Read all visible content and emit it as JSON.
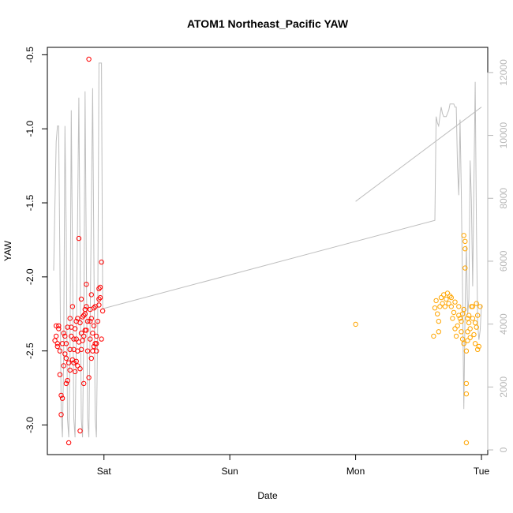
{
  "chart_data": {
    "type": "scatter",
    "title": "ATOM1 Northeast_Pacific YAW",
    "xlabel": "Date",
    "ylabel": "YAW",
    "x_ticks": [
      {
        "label": "Sat",
        "day": 1
      },
      {
        "label": "Sun",
        "day": 2
      },
      {
        "label": "Mon",
        "day": 3
      },
      {
        "label": "Tue",
        "day": 4
      }
    ],
    "xlim_days": [
      0.55,
      4.05
    ],
    "ylim": [
      -3.2,
      -0.45
    ],
    "y_ticks": [
      "-3.0",
      "-2.5",
      "-2.0",
      "-1.5",
      "-1.0",
      "-0.5"
    ],
    "y_tick_values": [
      -3.0,
      -2.5,
      -2.0,
      -1.5,
      -1.0,
      -0.5
    ],
    "y2lim": [
      -150,
      12800
    ],
    "y2_ticks": [
      "0",
      "2000",
      "4000",
      "6000",
      "8000",
      "10000",
      "12000"
    ],
    "y2_tick_values": [
      0,
      2000,
      4000,
      6000,
      8000,
      10000,
      12000
    ],
    "colors": {
      "series_red": "#ff0000",
      "series_orange": "#ffa500",
      "line_gray": "#bebebe"
    },
    "series": [
      {
        "color": "red",
        "points": [
          [
            0.61,
            -2.43
          ],
          [
            0.62,
            -2.33
          ],
          [
            0.62,
            -2.4
          ],
          [
            0.63,
            -2.45
          ],
          [
            0.64,
            -2.35
          ],
          [
            0.65,
            -2.5
          ],
          [
            0.65,
            -2.66
          ],
          [
            0.66,
            -2.8
          ],
          [
            0.66,
            -2.93
          ],
          [
            0.67,
            -2.82
          ],
          [
            0.67,
            -2.45
          ],
          [
            0.68,
            -2.38
          ],
          [
            0.68,
            -2.6
          ],
          [
            0.69,
            -2.4
          ],
          [
            0.7,
            -2.55
          ],
          [
            0.7,
            -2.45
          ],
          [
            0.71,
            -2.34
          ],
          [
            0.71,
            -2.7
          ],
          [
            0.72,
            -3.12
          ],
          [
            0.72,
            -2.58
          ],
          [
            0.73,
            -2.28
          ],
          [
            0.73,
            -2.49
          ],
          [
            0.74,
            -2.4
          ],
          [
            0.75,
            -2.2
          ],
          [
            0.75,
            -2.56
          ],
          [
            0.76,
            -2.49
          ],
          [
            0.76,
            -2.42
          ],
          [
            0.77,
            -2.64
          ],
          [
            0.77,
            -2.35
          ],
          [
            0.78,
            -2.3
          ],
          [
            0.78,
            -2.57
          ],
          [
            0.79,
            -2.5
          ],
          [
            0.79,
            -2.28
          ],
          [
            0.8,
            -2.44
          ],
          [
            0.8,
            -1.74
          ],
          [
            0.81,
            -2.62
          ],
          [
            0.81,
            -3.04
          ],
          [
            0.82,
            -2.38
          ],
          [
            0.82,
            -2.15
          ],
          [
            0.83,
            -2.27
          ],
          [
            0.83,
            -2.43
          ],
          [
            0.84,
            -2.72
          ],
          [
            0.84,
            -2.4
          ],
          [
            0.85,
            -2.25
          ],
          [
            0.85,
            -2.36
          ],
          [
            0.86,
            -2.2
          ],
          [
            0.86,
            -2.05
          ],
          [
            0.87,
            -2.3
          ],
          [
            0.87,
            -2.5
          ],
          [
            0.88,
            -0.53
          ],
          [
            0.88,
            -2.68
          ],
          [
            0.89,
            -2.22
          ],
          [
            0.89,
            -2.42
          ],
          [
            0.9,
            -2.12
          ],
          [
            0.9,
            -2.28
          ],
          [
            0.91,
            -2.38
          ],
          [
            0.91,
            -2.5
          ],
          [
            0.92,
            -2.21
          ],
          [
            0.92,
            -2.33
          ],
          [
            0.93,
            -2.45
          ],
          [
            0.93,
            -2.2
          ],
          [
            0.94,
            -2.5
          ],
          [
            0.94,
            -2.4
          ],
          [
            0.95,
            -2.3
          ],
          [
            0.96,
            -2.15
          ],
          [
            0.96,
            -2.08
          ],
          [
            0.97,
            -2.07
          ],
          [
            0.97,
            -2.14
          ],
          [
            0.98,
            -1.9
          ],
          [
            0.98,
            -2.42
          ],
          [
            0.99,
            -2.23
          ],
          [
            0.7,
            -2.72
          ],
          [
            0.74,
            -2.34
          ],
          [
            0.76,
            -2.58
          ],
          [
            0.79,
            -2.6
          ],
          [
            0.82,
            -2.49
          ],
          [
            0.84,
            -2.26
          ],
          [
            0.86,
            -2.36
          ],
          [
            0.9,
            -2.55
          ],
          [
            0.92,
            -2.47
          ],
          [
            0.64,
            -2.33
          ],
          [
            0.69,
            -2.52
          ],
          [
            0.73,
            -2.63
          ],
          [
            0.78,
            -2.42
          ],
          [
            0.81,
            -2.31
          ],
          [
            0.85,
            -2.22
          ],
          [
            0.89,
            -2.3
          ],
          [
            0.94,
            -2.45
          ],
          [
            0.96,
            -2.19
          ],
          [
            0.63,
            -2.47
          ]
        ]
      },
      {
        "color": "orange",
        "points": [
          [
            3.0,
            -2.32
          ],
          [
            3.62,
            -2.4
          ],
          [
            3.63,
            -2.21
          ],
          [
            3.64,
            -2.16
          ],
          [
            3.65,
            -2.25
          ],
          [
            3.66,
            -2.3
          ],
          [
            3.66,
            -2.37
          ],
          [
            3.67,
            -2.2
          ],
          [
            3.68,
            -2.14
          ],
          [
            3.69,
            -2.18
          ],
          [
            3.7,
            -2.12
          ],
          [
            3.71,
            -2.2
          ],
          [
            3.72,
            -2.15
          ],
          [
            3.73,
            -2.11
          ],
          [
            3.74,
            -2.18
          ],
          [
            3.75,
            -2.13
          ],
          [
            3.76,
            -2.2
          ],
          [
            3.77,
            -2.28
          ],
          [
            3.78,
            -2.24
          ],
          [
            3.79,
            -2.35
          ],
          [
            3.8,
            -2.4
          ],
          [
            3.81,
            -2.33
          ],
          [
            3.82,
            -2.2
          ],
          [
            3.83,
            -2.28
          ],
          [
            3.84,
            -2.3
          ],
          [
            3.85,
            -2.42
          ],
          [
            3.85,
            -2.25
          ],
          [
            3.86,
            -2.45
          ],
          [
            3.86,
            -1.72
          ],
          [
            3.87,
            -1.76
          ],
          [
            3.87,
            -1.81
          ],
          [
            3.87,
            -1.94
          ],
          [
            3.88,
            -2.72
          ],
          [
            3.88,
            -2.79
          ],
          [
            3.88,
            -3.12
          ],
          [
            3.88,
            -2.5
          ],
          [
            3.89,
            -2.37
          ],
          [
            3.89,
            -2.43
          ],
          [
            3.9,
            -2.31
          ],
          [
            3.9,
            -2.26
          ],
          [
            3.91,
            -2.35
          ],
          [
            3.92,
            -2.2
          ],
          [
            3.93,
            -2.28
          ],
          [
            3.94,
            -2.39
          ],
          [
            3.95,
            -2.45
          ],
          [
            3.96,
            -2.18
          ],
          [
            3.96,
            -2.34
          ],
          [
            3.97,
            -2.49
          ],
          [
            3.98,
            -2.47
          ],
          [
            3.99,
            -2.2
          ],
          [
            3.84,
            -2.37
          ],
          [
            3.86,
            -2.22
          ],
          [
            3.89,
            -2.28
          ],
          [
            3.91,
            -2.41
          ],
          [
            3.93,
            -2.2
          ],
          [
            3.95,
            -2.31
          ],
          [
            3.97,
            -2.26
          ],
          [
            3.76,
            -2.14
          ],
          [
            3.79,
            -2.17
          ],
          [
            3.82,
            -2.26
          ]
        ]
      }
    ],
    "gray_line": {
      "axis": "secondary",
      "points": [
        [
          0.6,
          5700
        ],
        [
          0.61,
          7800
        ],
        [
          0.62,
          9800
        ],
        [
          0.63,
          10300
        ],
        [
          0.64,
          10300
        ],
        [
          0.65,
          6000
        ],
        [
          0.66,
          1200
        ],
        [
          0.67,
          400
        ],
        [
          0.68,
          3000
        ],
        [
          0.69,
          10300
        ],
        [
          0.7,
          7000
        ],
        [
          0.71,
          1000
        ],
        [
          0.72,
          400
        ],
        [
          0.73,
          3000
        ],
        [
          0.74,
          10800
        ],
        [
          0.75,
          6000
        ],
        [
          0.76,
          1000
        ],
        [
          0.77,
          400
        ],
        [
          0.78,
          3500
        ],
        [
          0.8,
          11200
        ],
        [
          0.81,
          6000
        ],
        [
          0.82,
          1000
        ],
        [
          0.83,
          400
        ],
        [
          0.84,
          4000
        ],
        [
          0.85,
          11400
        ],
        [
          0.86,
          6000
        ],
        [
          0.87,
          1000
        ],
        [
          0.88,
          400
        ],
        [
          0.89,
          4000
        ],
        [
          0.91,
          11500
        ],
        [
          0.92,
          6000
        ],
        [
          0.93,
          1000
        ],
        [
          0.94,
          400
        ],
        [
          0.95,
          4000
        ],
        [
          0.96,
          12300
        ],
        [
          0.97,
          12300
        ],
        [
          0.98,
          12300
        ],
        [
          0.99,
          4500
        ],
        [
          1.0,
          4500
        ],
        [
          3.63,
          7300
        ],
        [
          3.64,
          10600
        ],
        [
          3.65,
          10400
        ],
        [
          3.66,
          10300
        ],
        [
          3.68,
          10900
        ],
        [
          3.69,
          10700
        ],
        [
          3.7,
          10600
        ],
        [
          3.71,
          10600
        ],
        [
          3.72,
          10600
        ],
        [
          3.73,
          10700
        ],
        [
          3.74,
          10800
        ],
        [
          3.75,
          11000
        ],
        [
          3.76,
          11000
        ],
        [
          3.77,
          11000
        ],
        [
          3.78,
          11000
        ],
        [
          3.79,
          10900
        ],
        [
          3.8,
          10900
        ],
        [
          3.81,
          9000
        ],
        [
          3.82,
          8100
        ],
        [
          3.83,
          10500
        ],
        [
          3.84,
          8200
        ],
        [
          3.85,
          5000
        ],
        [
          3.86,
          1300
        ],
        [
          3.87,
          4500
        ],
        [
          3.88,
          6500
        ],
        [
          3.89,
          4300
        ],
        [
          3.9,
          4800
        ],
        [
          3.91,
          9200
        ],
        [
          3.92,
          7900
        ],
        [
          3.93,
          5200
        ],
        [
          3.95,
          11700
        ],
        [
          3.96,
          7000
        ],
        [
          3.97,
          4000
        ],
        [
          3.98,
          3500
        ],
        [
          3.99,
          3800
        ],
        [
          4.0,
          4600
        ]
      ],
      "segments": [
        [
          [
            3.0,
            7900
          ],
          [
            4.0,
            10900
          ]
        ]
      ]
    }
  }
}
